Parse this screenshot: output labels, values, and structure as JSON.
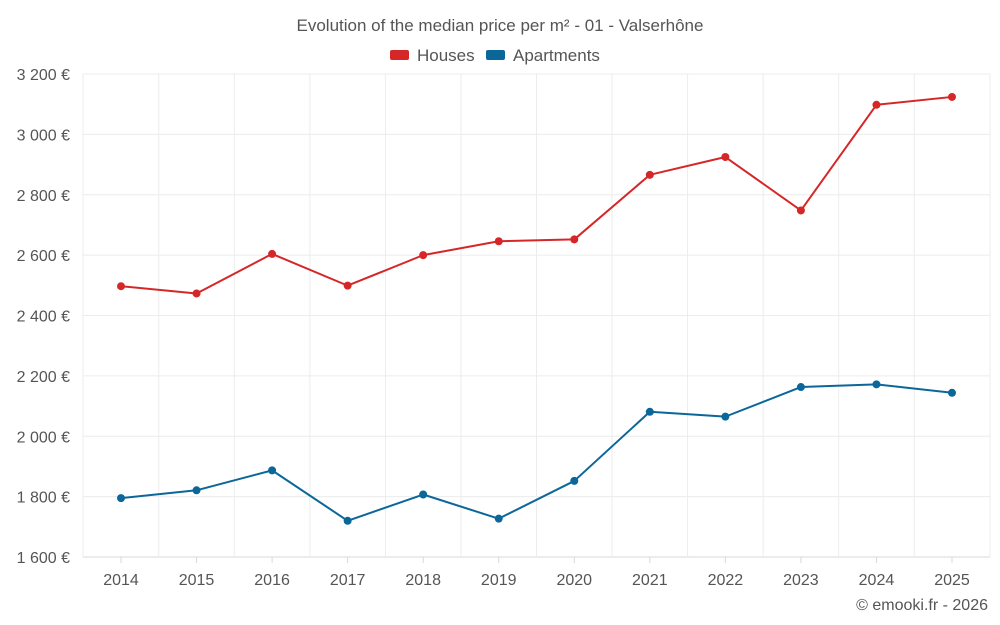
{
  "chart_data": {
    "type": "line",
    "title": "Evolution of the median price per m² - 01 - Valserhône",
    "categories": [
      "2014",
      "2015",
      "2016",
      "2017",
      "2018",
      "2019",
      "2020",
      "2021",
      "2022",
      "2023",
      "2024",
      "2025"
    ],
    "series": [
      {
        "name": "Houses",
        "color": "#d62728",
        "values": [
          2497,
          2473,
          2604,
          2499,
          2600,
          2646,
          2652,
          2866,
          2925,
          2748,
          3098,
          3124
        ]
      },
      {
        "name": "Apartments",
        "color": "#0b6799",
        "values": [
          1795,
          1821,
          1887,
          1720,
          1807,
          1727,
          1852,
          2081,
          2065,
          2163,
          2172,
          2144
        ]
      }
    ],
    "ylim": [
      1600,
      3200
    ],
    "yticks": [
      1600,
      1800,
      2000,
      2200,
      2400,
      2600,
      2800,
      3000,
      3200
    ],
    "ytick_labels": [
      "1 600 €",
      "1 800 €",
      "2 000 €",
      "2 200 €",
      "2 400 €",
      "2 600 €",
      "2 800 €",
      "3 000 €",
      "3 200 €"
    ],
    "xlabel": "",
    "ylabel": "",
    "grid": true,
    "legend_position": "top-center"
  },
  "credit": "© emooki.fr - 2026"
}
